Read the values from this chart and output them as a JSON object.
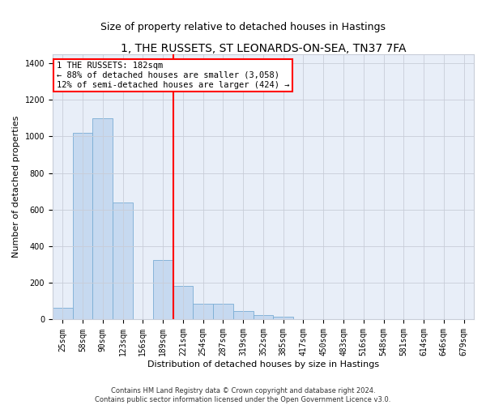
{
  "title": "1, THE RUSSETS, ST LEONARDS-ON-SEA, TN37 7FA",
  "subtitle": "Size of property relative to detached houses in Hastings",
  "xlabel": "Distribution of detached houses by size in Hastings",
  "ylabel": "Number of detached properties",
  "categories": [
    "25sqm",
    "58sqm",
    "90sqm",
    "123sqm",
    "156sqm",
    "189sqm",
    "221sqm",
    "254sqm",
    "287sqm",
    "319sqm",
    "352sqm",
    "385sqm",
    "417sqm",
    "450sqm",
    "483sqm",
    "516sqm",
    "548sqm",
    "581sqm",
    "614sqm",
    "646sqm",
    "679sqm"
  ],
  "values": [
    65,
    1020,
    1100,
    640,
    0,
    325,
    185,
    85,
    85,
    45,
    25,
    15,
    0,
    0,
    0,
    0,
    0,
    0,
    0,
    0,
    0
  ],
  "bar_color": "#c6d9f0",
  "bar_edge_color": "#7aadd4",
  "vline_color": "red",
  "vline_pos": 5.5,
  "annotation_text": "1 THE RUSSETS: 182sqm\n← 88% of detached houses are smaller (3,058)\n12% of semi-detached houses are larger (424) →",
  "ylim": [
    0,
    1450
  ],
  "yticks": [
    0,
    200,
    400,
    600,
    800,
    1000,
    1200,
    1400
  ],
  "footer": "Contains HM Land Registry data © Crown copyright and database right 2024.\nContains public sector information licensed under the Open Government Licence v3.0.",
  "plot_bg_color": "#e8eef8",
  "grid_color": "#c8cdd8",
  "title_fontsize": 10,
  "subtitle_fontsize": 9,
  "tick_fontsize": 7,
  "ylabel_fontsize": 8,
  "xlabel_fontsize": 8,
  "annotation_fontsize": 7.5,
  "footer_fontsize": 6
}
